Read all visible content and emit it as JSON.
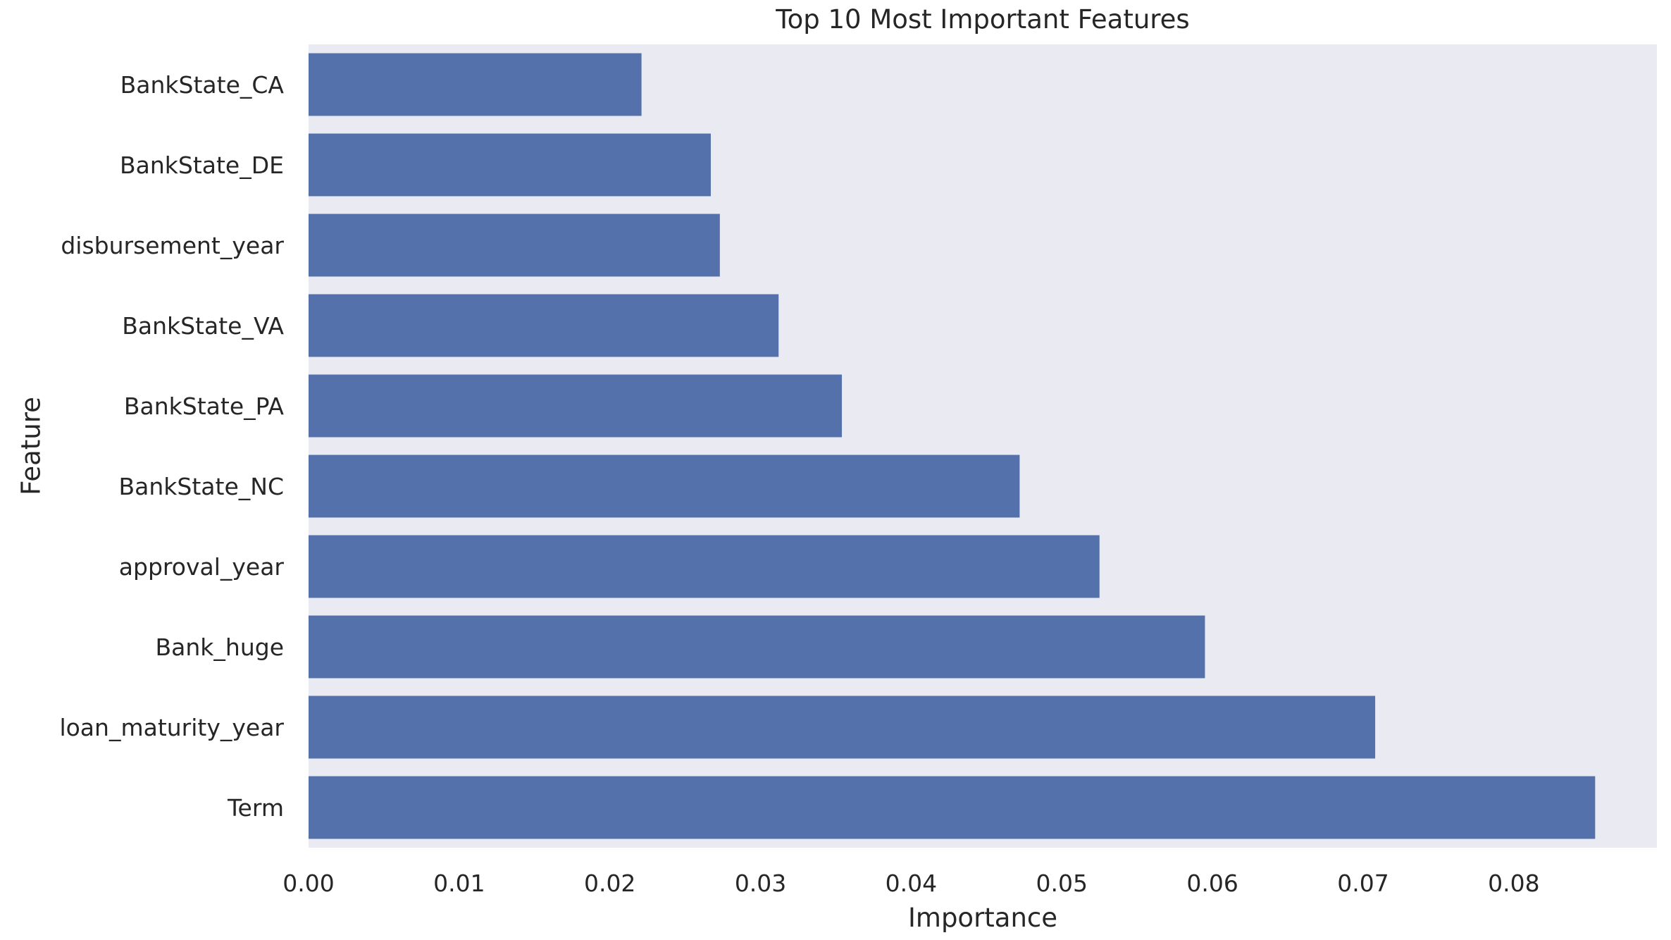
{
  "chart_data": {
    "type": "bar",
    "orientation": "horizontal",
    "title": "Top 10 Most Important Features",
    "xlabel": "Importance",
    "ylabel": "Feature",
    "categories": [
      "BankState_CA",
      "BankState_DE",
      "disbursement_year",
      "BankState_VA",
      "BankState_PA",
      "BankState_NC",
      "approval_year",
      "Bank_huge",
      "loan_maturity_year",
      "Term"
    ],
    "values": [
      0.0221,
      0.0267,
      0.0273,
      0.0312,
      0.0354,
      0.0472,
      0.0525,
      0.0595,
      0.0708,
      0.0854
    ],
    "xlim": [
      0,
      0.0895
    ],
    "xticks": [
      0.0,
      0.01,
      0.02,
      0.03,
      0.04,
      0.05,
      0.06,
      0.07,
      0.08
    ],
    "xtick_labels": [
      "0.00",
      "0.01",
      "0.02",
      "0.03",
      "0.04",
      "0.05",
      "0.06",
      "0.07",
      "0.08"
    ],
    "grid": false,
    "colors": {
      "bar": "#5471ab",
      "plot_background": "#eaeaf2",
      "text": "#262626"
    }
  }
}
